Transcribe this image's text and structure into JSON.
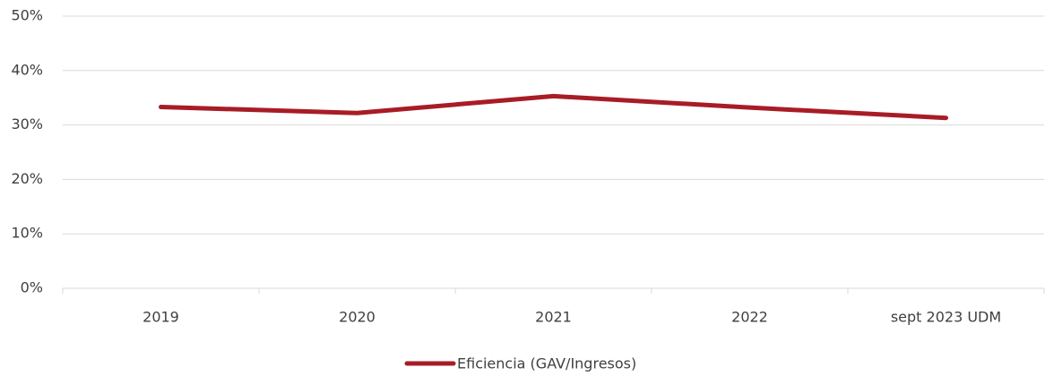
{
  "chart_data": {
    "type": "line",
    "categories": [
      "2019",
      "2020",
      "2021",
      "2022",
      "sept 2023 UDM"
    ],
    "series": [
      {
        "name": "Eficiencia (GAV/Ingresos)",
        "color": "#a81c26",
        "values": [
          33.3,
          32.2,
          35.3,
          33.2,
          31.3
        ]
      }
    ],
    "ylim": [
      0,
      50
    ],
    "yticks": [
      {
        "value": 0,
        "label": "0%"
      },
      {
        "value": 10,
        "label": "10%"
      },
      {
        "value": 20,
        "label": "20%"
      },
      {
        "value": 30,
        "label": "30%"
      },
      {
        "value": 40,
        "label": "40%"
      },
      {
        "value": 50,
        "label": "50%"
      }
    ],
    "grid": true
  }
}
